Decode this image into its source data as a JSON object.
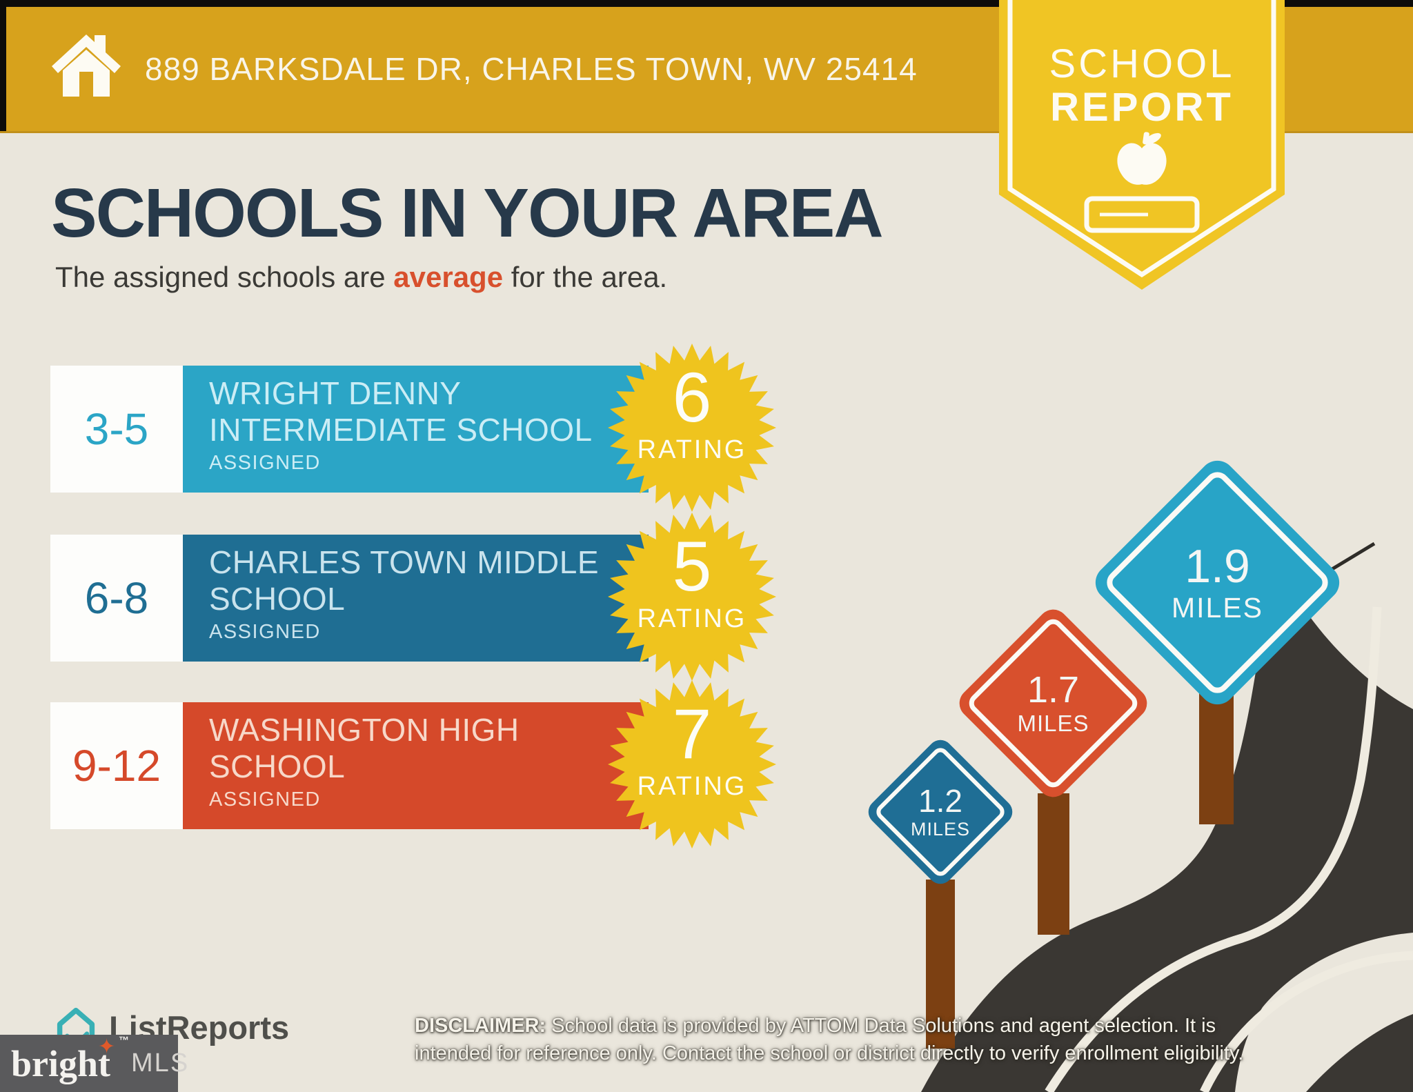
{
  "header": {
    "address": "889 BARKSDALE DR, CHARLES TOWN, WV 25414",
    "badge_line1": "SCHOOL",
    "badge_line2": "REPORT"
  },
  "intro": {
    "title": "SCHOOLS IN YOUR AREA",
    "subtitle_prefix": "The assigned schools are ",
    "subtitle_highlight": "average",
    "subtitle_suffix": " for the area."
  },
  "schools": [
    {
      "grades": "3-5",
      "name": "WRIGHT DENNY INTERMEDIATE SCHOOL",
      "status": "ASSIGNED",
      "rating": "6",
      "rating_label": "RATING"
    },
    {
      "grades": "6-8",
      "name": "CHARLES TOWN MIDDLE SCHOOL",
      "status": "ASSIGNED",
      "rating": "5",
      "rating_label": "RATING"
    },
    {
      "grades": "9-12",
      "name": "WASHINGTON HIGH SCHOOL",
      "status": "ASSIGNED",
      "rating": "7",
      "rating_label": "RATING"
    }
  ],
  "distances": [
    {
      "value": "1.2",
      "unit": "MILES"
    },
    {
      "value": "1.7",
      "unit": "MILES"
    },
    {
      "value": "1.9",
      "unit": "MILES"
    }
  ],
  "footer": {
    "logo": "ListReports",
    "disclaimer_label": "DISCLAIMER:",
    "disclaimer_text": " School data is provided by ATTOM Data Solutions and agent selection. It is intended for reference only. Contact the school or district directly to verify enrollment eligibility.",
    "brand_name": "bright",
    "brand_star": "✦",
    "brand_tm": "™",
    "brand_suffix": "MLS"
  },
  "colors": {
    "background": "#eae6dc",
    "banner_gold": "#d7a21c",
    "badge_yellow": "#f0c524",
    "title_navy": "#27394a",
    "accent_orange": "#d8502d",
    "school1": "#2ba5c6",
    "school1_text": "#cbedf5",
    "school2": "#1f6e93",
    "school2_text": "#c9e3ed",
    "school3": "#d5492a",
    "school3_text": "#f7d8c9",
    "starburst_yellow": "#efc41e",
    "road_dark": "#3a3733",
    "road_line": "#efebe0",
    "post_brown": "#7c4012",
    "sign_blue": "#1f6e95",
    "sign_red": "#d8502d",
    "sign_teal": "#28a4c7",
    "footer_box_gray": "#5a5a5c",
    "logo_teal": "#39b0b5"
  }
}
